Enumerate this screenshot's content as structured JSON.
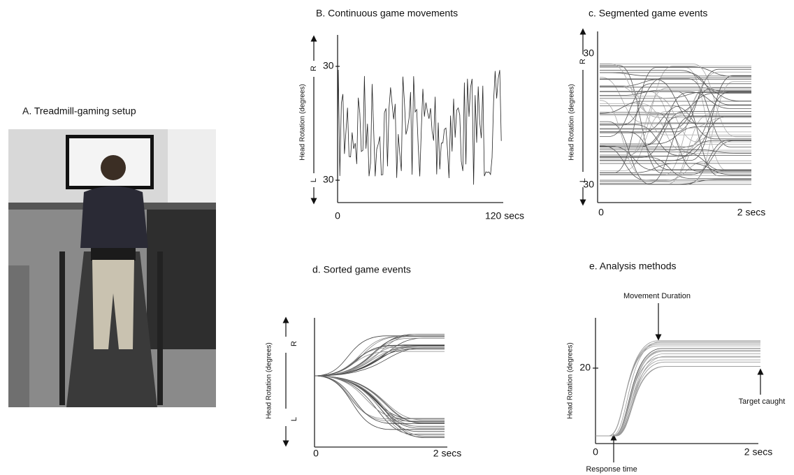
{
  "panel_a": {
    "title": "A. Treadmill-gaming setup"
  },
  "panel_b": {
    "title": "B. Continuous game movements",
    "y_label": "Head Rotation (degrees)",
    "y_top": "30",
    "y_bottom": "30",
    "right": "R",
    "left": "L",
    "x_start": "0",
    "x_end": "120 secs"
  },
  "panel_c": {
    "title": "c. Segmented game events",
    "y_label": "Head Rotation (degrees)",
    "y_top": "30",
    "y_bottom": "30",
    "right": "R",
    "left": "L",
    "x_start": "0",
    "x_end": "2 secs"
  },
  "panel_d": {
    "title": "d.  Sorted game events",
    "y_label": "Head Rotation (degrees)",
    "right": "R",
    "left": "L",
    "x_start": "0",
    "x_end": "2 secs"
  },
  "panel_e": {
    "title": "e. Analysis methods",
    "y_label": "Head Rotation (degrees)",
    "y_tick": "20",
    "x_start": "0",
    "x_end": "2 secs",
    "movement_duration": "Movement Duration",
    "target_caught": "Target caught",
    "response_time": "Response time"
  }
}
